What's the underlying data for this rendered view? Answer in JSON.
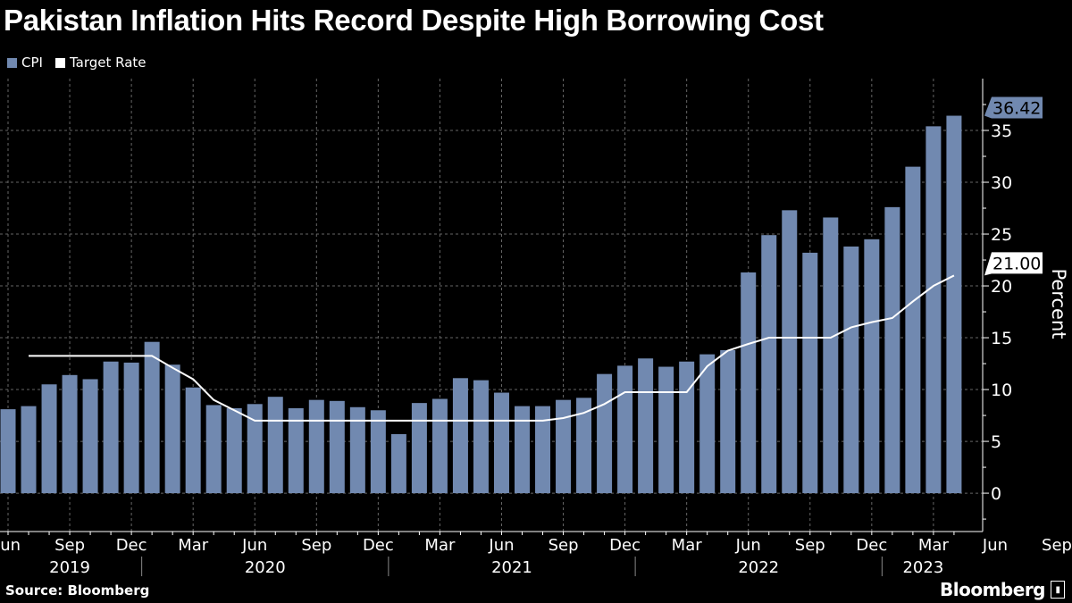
{
  "chart_data": {
    "type": "bar",
    "title": "Pakistan Inflation Hits Record Despite High Borrowing Cost",
    "ylabel": "Percent",
    "ylim": [
      -3.7,
      40
    ],
    "yticks": [
      0,
      5,
      10,
      15,
      20,
      25,
      30,
      35
    ],
    "grid": true,
    "legend_position": "top-left",
    "x_month_labels": [
      "Jun",
      "Sep",
      "Dec",
      "Mar",
      "Jun",
      "Sep",
      "Dec",
      "Mar",
      "Jun",
      "Sep",
      "Dec",
      "Mar",
      "Jun",
      "Sep",
      "Dec",
      "Mar",
      "Jun",
      "Sep",
      "Dec",
      "Mar"
    ],
    "x_year_labels": [
      "2019",
      "2020",
      "2021",
      "2022",
      "2023"
    ],
    "categories": [
      "2019-06",
      "2019-07",
      "2019-08",
      "2019-09",
      "2019-10",
      "2019-11",
      "2019-12",
      "2020-01",
      "2020-02",
      "2020-03",
      "2020-04",
      "2020-05",
      "2020-06",
      "2020-07",
      "2020-08",
      "2020-09",
      "2020-10",
      "2020-11",
      "2020-12",
      "2021-01",
      "2021-02",
      "2021-03",
      "2021-04",
      "2021-05",
      "2021-06",
      "2021-07",
      "2021-08",
      "2021-09",
      "2021-10",
      "2021-11",
      "2021-12",
      "2022-01",
      "2022-02",
      "2022-03",
      "2022-04",
      "2022-05",
      "2022-06",
      "2022-07",
      "2022-08",
      "2022-09",
      "2022-10",
      "2022-11",
      "2022-12",
      "2023-01",
      "2023-02",
      "2023-03",
      "2023-04"
    ],
    "series": [
      {
        "name": "CPI",
        "type": "bar",
        "color": "#7189b0",
        "values": [
          8.1,
          8.4,
          10.5,
          11.4,
          11.0,
          12.7,
          12.6,
          14.6,
          12.4,
          10.2,
          8.5,
          8.2,
          8.6,
          9.3,
          8.2,
          9.0,
          8.9,
          8.3,
          8.0,
          5.7,
          8.7,
          9.1,
          11.1,
          10.9,
          9.7,
          8.4,
          8.4,
          9.0,
          9.2,
          11.5,
          12.3,
          13.0,
          12.2,
          12.7,
          13.4,
          13.8,
          21.3,
          24.9,
          27.3,
          23.2,
          26.6,
          23.8,
          24.5,
          27.6,
          31.5,
          35.4,
          36.42
        ],
        "last_label": "36.42"
      },
      {
        "name": "Target Rate",
        "type": "line",
        "color": "#ffffff",
        "values": [
          null,
          13.25,
          13.25,
          13.25,
          13.25,
          13.25,
          13.25,
          13.25,
          12.1,
          11.0,
          9.0,
          8.0,
          7.0,
          7.0,
          7.0,
          7.0,
          7.0,
          7.0,
          7.0,
          7.0,
          7.0,
          7.0,
          7.0,
          7.0,
          7.0,
          7.0,
          7.0,
          7.25,
          7.75,
          8.6,
          9.75,
          9.75,
          9.75,
          9.75,
          12.25,
          13.75,
          14.4,
          15.0,
          15.0,
          15.0,
          15.0,
          16.0,
          16.5,
          16.9,
          18.5,
          20.0,
          21.0
        ],
        "last_label": "21.00"
      }
    ]
  },
  "footer": {
    "source": "Source: Bloomberg",
    "brand": "Bloomberg"
  }
}
